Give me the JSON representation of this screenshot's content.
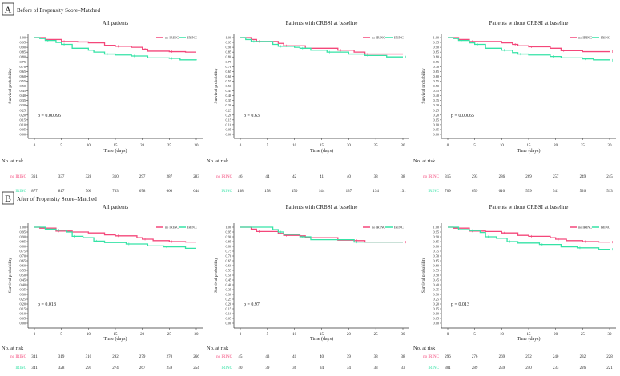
{
  "colors": {
    "no_irinc": "#f4477a",
    "irinc": "#35e3a6"
  },
  "risk_table_label": "No. at risk",
  "chart_data": [
    {
      "panel": "A",
      "panel_title": "Before of Propensity Score–Matched",
      "plots": [
        {
          "type": "line",
          "title": "All patients",
          "xlabel": "Time (days)",
          "ylabel": "Survival probability",
          "xlim": [
            0,
            30
          ],
          "ylim": [
            0,
            1
          ],
          "p_value": "p = 0.00096",
          "legend": [
            "no IRINC",
            "IRINC"
          ],
          "legend_position": "top-right",
          "series": [
            {
              "name": "no IRINC",
              "points": [
                [
                  0,
                  1
                ],
                [
                  2,
                  0.98
                ],
                [
                  5,
                  0.96
                ],
                [
                  8,
                  0.955
                ],
                [
                  10,
                  0.945
                ],
                [
                  13,
                  0.92
                ],
                [
                  15,
                  0.91
                ],
                [
                  18,
                  0.9
                ],
                [
                  20,
                  0.88
                ],
                [
                  21,
                  0.86
                ],
                [
                  25,
                  0.855
                ],
                [
                  28,
                  0.85
                ],
                [
                  30,
                  0.85
                ]
              ],
              "at_risk": [
                "361",
                "337",
                "328",
                "310",
                "297",
                "287",
                "283"
              ]
            },
            {
              "name": "IRINC",
              "points": [
                [
                  0,
                  1
                ],
                [
                  1,
                  0.99
                ],
                [
                  2,
                  0.97
                ],
                [
                  4,
                  0.95
                ],
                [
                  5,
                  0.93
                ],
                [
                  7,
                  0.89
                ],
                [
                  10,
                  0.87
                ],
                [
                  11,
                  0.85
                ],
                [
                  13,
                  0.83
                ],
                [
                  15,
                  0.82
                ],
                [
                  18,
                  0.81
                ],
                [
                  21,
                  0.79
                ],
                [
                  25,
                  0.785
                ],
                [
                  27,
                  0.77
                ],
                [
                  30,
                  0.765
                ]
              ],
              "at_risk": [
                "877",
                "817",
                "760",
                "703",
                "678",
                "660",
                "644"
              ]
            }
          ]
        },
        {
          "type": "line",
          "title": "Patients with CRBSI at baseline",
          "xlabel": "Time (days)",
          "ylabel": "Survival probability",
          "xlim": [
            0,
            30
          ],
          "ylim": [
            0,
            1
          ],
          "p_value": "p = 0.63",
          "legend": [
            "no IRINC",
            "IRINC"
          ],
          "legend_position": "top-right",
          "series": [
            {
              "name": "no IRINC",
              "points": [
                [
                  0,
                  1
                ],
                [
                  2,
                  0.98
                ],
                [
                  3,
                  0.96
                ],
                [
                  7,
                  0.94
                ],
                [
                  8,
                  0.915
                ],
                [
                  12,
                  0.89
                ],
                [
                  18,
                  0.87
                ],
                [
                  21,
                  0.85
                ],
                [
                  23,
                  0.83
                ],
                [
                  30,
                  0.83
                ]
              ],
              "at_risk": [
                "46",
                "44",
                "42",
                "41",
                "40",
                "38",
                "38"
              ]
            },
            {
              "name": "IRINC",
              "points": [
                [
                  0,
                  1
                ],
                [
                  1,
                  0.98
                ],
                [
                  2,
                  0.96
                ],
                [
                  6,
                  0.93
                ],
                [
                  7,
                  0.91
                ],
                [
                  10,
                  0.9
                ],
                [
                  11,
                  0.89
                ],
                [
                  13,
                  0.87
                ],
                [
                  16,
                  0.85
                ],
                [
                  20,
                  0.83
                ],
                [
                  23,
                  0.815
                ],
                [
                  27,
                  0.8
                ],
                [
                  30,
                  0.8
                ]
              ],
              "at_risk": [
                "168",
                "158",
                "150",
                "144",
                "137",
                "134",
                "131"
              ]
            }
          ]
        },
        {
          "type": "line",
          "title": "Patients without CRBSI at baseline",
          "xlabel": "Time (days)",
          "ylabel": "Survival probability",
          "xlim": [
            0,
            30
          ],
          "ylim": [
            0,
            1
          ],
          "p_value": "p = 0.00065",
          "legend": [
            "no IRINC",
            "IRINC"
          ],
          "legend_position": "top-right",
          "series": [
            {
              "name": "no IRINC",
              "points": [
                [
                  0,
                  1
                ],
                [
                  2,
                  0.98
                ],
                [
                  4,
                  0.96
                ],
                [
                  10,
                  0.945
                ],
                [
                  12,
                  0.93
                ],
                [
                  13,
                  0.915
                ],
                [
                  15,
                  0.905
                ],
                [
                  19,
                  0.89
                ],
                [
                  21,
                  0.865
                ],
                [
                  25,
                  0.855
                ],
                [
                  30,
                  0.855
                ]
              ],
              "at_risk": [
                "315",
                "293",
                "286",
                "269",
                "257",
                "249",
                "245"
              ]
            },
            {
              "name": "IRINC",
              "points": [
                [
                  0,
                  1
                ],
                [
                  1,
                  0.99
                ],
                [
                  2,
                  0.97
                ],
                [
                  4,
                  0.945
                ],
                [
                  5,
                  0.93
                ],
                [
                  7,
                  0.89
                ],
                [
                  10,
                  0.87
                ],
                [
                  12,
                  0.845
                ],
                [
                  13,
                  0.83
                ],
                [
                  15,
                  0.82
                ],
                [
                  19,
                  0.805
                ],
                [
                  21,
                  0.79
                ],
                [
                  25,
                  0.78
                ],
                [
                  27,
                  0.77
                ],
                [
                  30,
                  0.765
                ]
              ],
              "at_risk": [
                "709",
                "659",
                "610",
                "559",
                "541",
                "526",
                "513"
              ]
            }
          ]
        }
      ]
    },
    {
      "panel": "B",
      "panel_title": "After of Propensity Score–Matched",
      "plots": [
        {
          "type": "line",
          "title": "All patients",
          "xlabel": "Time (days)",
          "ylabel": "Survival probability",
          "xlim": [
            0,
            30
          ],
          "ylim": [
            0,
            1
          ],
          "p_value": "p = 0.018",
          "legend": [
            "no IRINC",
            "IRINC"
          ],
          "legend_position": "top-right",
          "series": [
            {
              "name": "no IRINC",
              "points": [
                [
                  0,
                  1
                ],
                [
                  1,
                  0.99
                ],
                [
                  4,
                  0.96
                ],
                [
                  7,
                  0.95
                ],
                [
                  10,
                  0.94
                ],
                [
                  13,
                  0.92
                ],
                [
                  15,
                  0.91
                ],
                [
                  19,
                  0.89
                ],
                [
                  20,
                  0.875
                ],
                [
                  22,
                  0.86
                ],
                [
                  25,
                  0.85
                ],
                [
                  28,
                  0.845
                ],
                [
                  30,
                  0.845
                ]
              ],
              "at_risk": [
                "341",
                "319",
                "310",
                "292",
                "279",
                "270",
                "266"
              ]
            },
            {
              "name": "IRINC",
              "points": [
                [
                  0,
                  1
                ],
                [
                  2,
                  0.98
                ],
                [
                  4,
                  0.97
                ],
                [
                  6,
                  0.95
                ],
                [
                  7,
                  0.905
                ],
                [
                  9,
                  0.89
                ],
                [
                  11,
                  0.855
                ],
                [
                  13,
                  0.84
                ],
                [
                  17,
                  0.825
                ],
                [
                  21,
                  0.805
                ],
                [
                  24,
                  0.795
                ],
                [
                  28,
                  0.78
                ],
                [
                  30,
                  0.78
                ]
              ],
              "at_risk": [
                "341",
                "328",
                "295",
                "274",
                "267",
                "259",
                "254"
              ]
            }
          ]
        },
        {
          "type": "line",
          "title": "Patients with CRBSI at baseline",
          "xlabel": "Time (days)",
          "ylabel": "Survival probability",
          "xlim": [
            0,
            30
          ],
          "ylim": [
            0,
            1
          ],
          "p_value": "p = 0.97",
          "legend": [
            "no IRINC",
            "IRINC"
          ],
          "legend_position": "top-right",
          "series": [
            {
              "name": "no IRINC",
              "points": [
                [
                  0,
                  1
                ],
                [
                  2,
                  0.98
                ],
                [
                  3,
                  0.955
                ],
                [
                  7,
                  0.935
                ],
                [
                  8,
                  0.915
                ],
                [
                  11,
                  0.91
                ],
                [
                  12,
                  0.89
                ],
                [
                  18,
                  0.865
                ],
                [
                  21,
                  0.86
                ],
                [
                  23,
                  0.845
                ],
                [
                  30,
                  0.845
                ]
              ],
              "at_risk": [
                "45",
                "43",
                "41",
                "40",
                "39",
                "38",
                "38"
              ]
            },
            {
              "name": "IRINC",
              "points": [
                [
                  0,
                  1
                ],
                [
                  6,
                  0.975
                ],
                [
                  7,
                  0.95
                ],
                [
                  8,
                  0.925
                ],
                [
                  11,
                  0.9
                ],
                [
                  13,
                  0.87
                ],
                [
                  21,
                  0.845
                ],
                [
                  30,
                  0.845
                ]
              ],
              "at_risk": [
                "40",
                "39",
                "36",
                "34",
                "34",
                "33",
                "33"
              ]
            }
          ]
        },
        {
          "type": "line",
          "title": "Patients without CRBSI at baseline",
          "xlabel": "Time (days)",
          "ylabel": "Survival probability",
          "xlim": [
            0,
            30
          ],
          "ylim": [
            0,
            1
          ],
          "p_value": "p = 0.013",
          "legend": [
            "no IRINC",
            "IRINC"
          ],
          "legend_position": "top-right",
          "series": [
            {
              "name": "no IRINC",
              "points": [
                [
                  0,
                  1
                ],
                [
                  1,
                  0.99
                ],
                [
                  4,
                  0.96
                ],
                [
                  7,
                  0.955
                ],
                [
                  10,
                  0.94
                ],
                [
                  13,
                  0.915
                ],
                [
                  15,
                  0.905
                ],
                [
                  19,
                  0.89
                ],
                [
                  20,
                  0.875
                ],
                [
                  22,
                  0.86
                ],
                [
                  25,
                  0.85
                ],
                [
                  28,
                  0.845
                ],
                [
                  30,
                  0.845
                ]
              ],
              "at_risk": [
                "296",
                "276",
                "269",
                "252",
                "240",
                "232",
                "228"
              ]
            },
            {
              "name": "IRINC",
              "points": [
                [
                  0,
                  1
                ],
                [
                  2,
                  0.975
                ],
                [
                  4,
                  0.965
                ],
                [
                  6,
                  0.945
                ],
                [
                  7,
                  0.9
                ],
                [
                  9,
                  0.885
                ],
                [
                  11,
                  0.85
                ],
                [
                  13,
                  0.835
                ],
                [
                  17,
                  0.82
                ],
                [
                  21,
                  0.795
                ],
                [
                  24,
                  0.785
                ],
                [
                  28,
                  0.77
                ],
                [
                  30,
                  0.77
                ]
              ],
              "at_risk": [
                "301",
                "289",
                "259",
                "240",
                "233",
                "226",
                "221"
              ]
            }
          ]
        }
      ]
    }
  ]
}
